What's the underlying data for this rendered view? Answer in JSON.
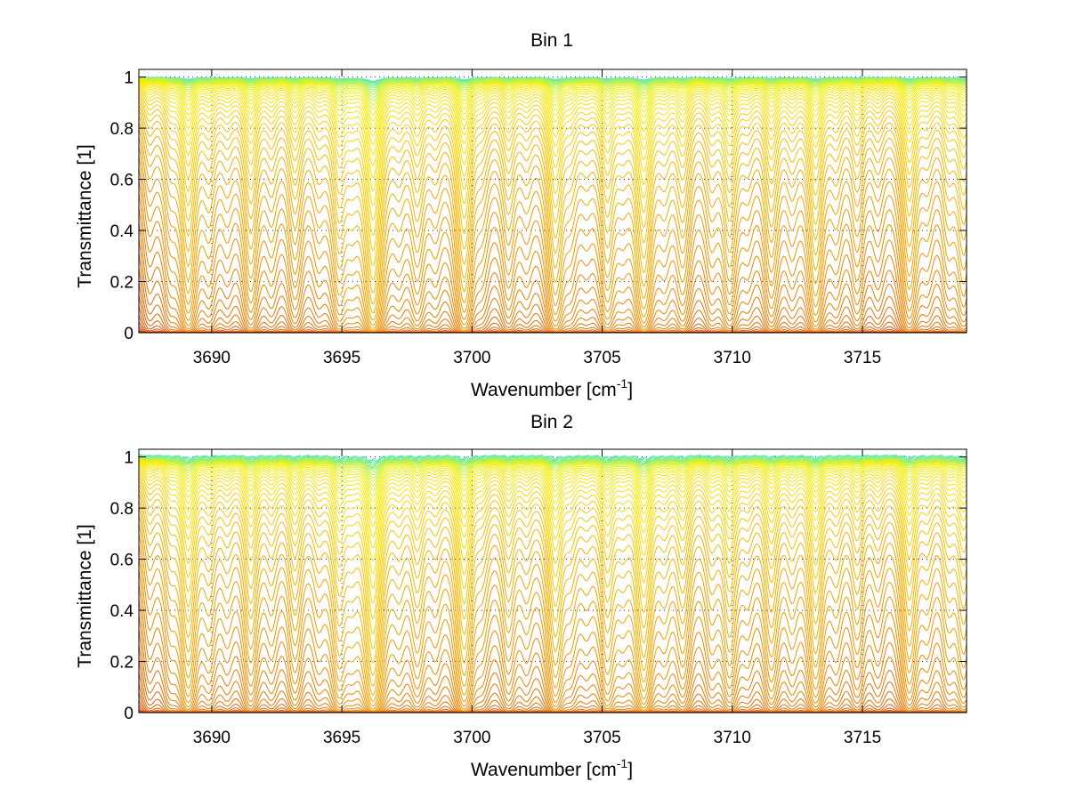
{
  "chart_data": [
    {
      "type": "line",
      "title": "Bin 1",
      "xlabel": "Wavenumber [cm",
      "xlabel_sup": "-1",
      "xlabel_end": "]",
      "ylabel": "Transmittance [1]",
      "xlim": [
        3687.2,
        3719.0
      ],
      "ylim": [
        0,
        1.03
      ],
      "xticks": [
        3690,
        3695,
        3700,
        3705,
        3710,
        3715
      ],
      "xtick_labels": [
        "3690",
        "3695",
        "3700",
        "3705",
        "3710",
        "3715"
      ],
      "yticks": [
        0,
        0.2,
        0.4,
        0.6,
        0.8,
        1
      ],
      "ytick_labels": [
        "0",
        "0.2",
        "0.4",
        "0.6",
        "0.8",
        "1"
      ],
      "grid": "dotted",
      "series_count": 60,
      "colormap": [
        "#cc0000",
        "#d93a00",
        "#e56a00",
        "#f09000",
        "#f7b800",
        "#ffe000",
        "#f0f000",
        "#a8f060",
        "#50e8c8"
      ],
      "absorption_lines": [
        3687.6,
        3688.4,
        3689.1,
        3689.9,
        3690.6,
        3691.5,
        3692.3,
        3693.2,
        3694.1,
        3694.9,
        3695.4,
        3696.2,
        3697.2,
        3697.9,
        3698.6,
        3699.7,
        3700.4,
        3701.4,
        3702.1,
        3703.2,
        3703.8,
        3704.4,
        3705.2,
        3705.8,
        3706.6,
        3707.4,
        3708.1,
        3709.2,
        3709.9,
        3710.6,
        3711.5,
        3712.3,
        3713.2,
        3714.0,
        3714.8,
        3715.6,
        3716.8,
        3717.5,
        3718.3,
        3718.9
      ],
      "line_strengths": [
        0.5,
        0.7,
        3.0,
        1.0,
        0.6,
        2.0,
        0.8,
        1.5,
        0.7,
        2.2,
        0.9,
        6.0,
        0.8,
        1.5,
        0.7,
        3.5,
        0.6,
        1.2,
        0.6,
        3.0,
        0.8,
        0.5,
        2.2,
        0.7,
        3.8,
        0.9,
        1.6,
        0.9,
        2.0,
        0.6,
        1.8,
        0.8,
        2.6,
        0.8,
        1.1,
        0.6,
        2.4,
        0.7,
        1.0,
        2.2
      ]
    },
    {
      "type": "line",
      "title": "Bin 2",
      "xlabel": "Wavenumber [cm",
      "xlabel_sup": "-1",
      "xlabel_end": "]",
      "ylabel": "Transmittance [1]",
      "xlim": [
        3687.2,
        3719.0
      ],
      "ylim": [
        0,
        1.03
      ],
      "xticks": [
        3690,
        3695,
        3700,
        3705,
        3710,
        3715
      ],
      "xtick_labels": [
        "3690",
        "3695",
        "3700",
        "3705",
        "3710",
        "3715"
      ],
      "yticks": [
        0,
        0.2,
        0.4,
        0.6,
        0.8,
        1
      ],
      "ytick_labels": [
        "0",
        "0.2",
        "0.4",
        "0.6",
        "0.8",
        "1"
      ],
      "grid": "dotted",
      "series_count": 60,
      "colormap": [
        "#cc0000",
        "#d93a00",
        "#e56a00",
        "#f09000",
        "#f7b800",
        "#ffe000",
        "#f0f000",
        "#a8f060",
        "#50e8c8"
      ],
      "absorption_lines": [
        3687.6,
        3688.4,
        3689.1,
        3689.9,
        3690.6,
        3691.5,
        3692.3,
        3693.2,
        3694.1,
        3694.9,
        3695.4,
        3696.2,
        3697.2,
        3697.9,
        3698.6,
        3699.7,
        3700.4,
        3701.4,
        3702.1,
        3703.2,
        3703.8,
        3704.4,
        3705.2,
        3705.8,
        3706.6,
        3707.4,
        3708.1,
        3709.2,
        3709.9,
        3710.6,
        3711.5,
        3712.3,
        3713.2,
        3714.0,
        3714.8,
        3715.6,
        3716.8,
        3717.5,
        3718.3,
        3718.9
      ],
      "line_strengths": [
        0.6,
        0.8,
        3.2,
        1.1,
        0.7,
        2.1,
        0.9,
        1.6,
        0.8,
        2.4,
        1.0,
        6.2,
        0.9,
        1.6,
        0.8,
        3.7,
        0.7,
        1.3,
        0.7,
        3.1,
        0.9,
        0.6,
        2.3,
        0.8,
        4.0,
        1.0,
        1.7,
        1.0,
        2.1,
        0.7,
        1.9,
        0.9,
        2.7,
        0.9,
        1.2,
        0.7,
        2.5,
        0.8,
        1.1,
        2.3
      ]
    }
  ]
}
